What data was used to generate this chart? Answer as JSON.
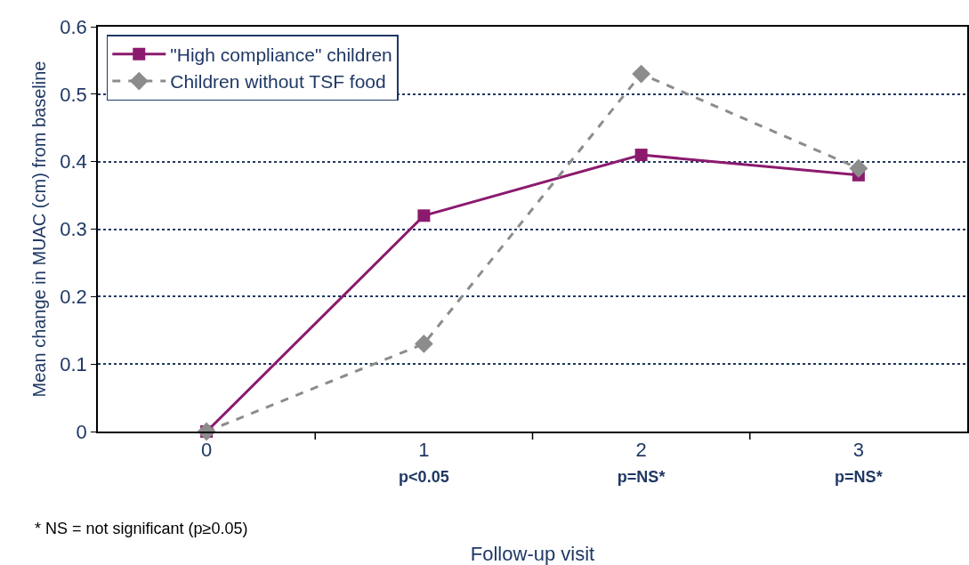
{
  "chart_data": {
    "type": "line",
    "xlabel": "Follow-up visit",
    "ylabel": "Mean change in MUAC (cm) from baseline",
    "categories": [
      "0",
      "1\np<0.05",
      "2\np=NS*",
      "3\np=NS*"
    ],
    "series": [
      {
        "name": "\"High compliance\" children",
        "color": "#8b1a6e",
        "marker": "square",
        "line_style": "solid",
        "values": [
          0,
          0.32,
          0.41,
          0.38
        ]
      },
      {
        "name": "Children without TSF food",
        "color": "#8c8c8c",
        "marker": "diamond",
        "line_style": "dashed",
        "values": [
          0,
          0.13,
          0.53,
          0.39
        ]
      }
    ],
    "ylim": [
      0,
      0.6
    ],
    "yticks": [
      0,
      0.1,
      0.2,
      0.3,
      0.4,
      0.5,
      0.6
    ],
    "grid": "y",
    "legend": "top left",
    "annotations": [
      "* NS = not significant (p≥0.05)"
    ]
  }
}
